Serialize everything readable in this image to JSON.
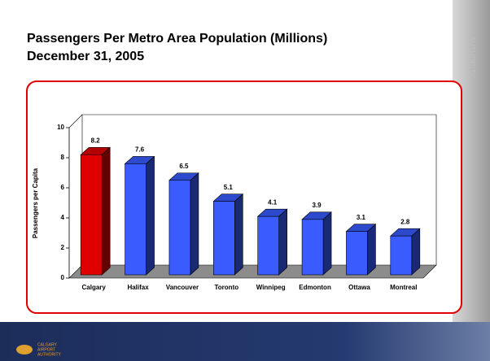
{
  "chart_data": {
    "type": "bar3d",
    "title": "Passengers Per Metro Area Population (Millions)",
    "subtitle": "December 31, 2005",
    "y_label": "Passengers per Capita",
    "categories": [
      "Calgary",
      "Halifax",
      "Vancouver",
      "Toronto",
      "Winnipeg",
      "Edmonton",
      "Ottawa",
      "Montreal"
    ],
    "values": [
      8.2,
      7.6,
      6.5,
      5.1,
      4.1,
      3.9,
      3.1,
      2.8
    ],
    "colors": [
      "#e00000",
      "#3a5cff",
      "#3a5cff",
      "#3a5cff",
      "#3a5cff",
      "#3a5cff",
      "#3a5cff",
      "#3a5cff"
    ],
    "ylim": [
      0,
      10
    ],
    "yticks": [
      0,
      2,
      4,
      6,
      8,
      10
    ]
  },
  "footer": {
    "logo_text": [
      "CALGARY",
      "AIRPORT",
      "AUTHORITY"
    ],
    "side_text": "AUTHORITY"
  }
}
